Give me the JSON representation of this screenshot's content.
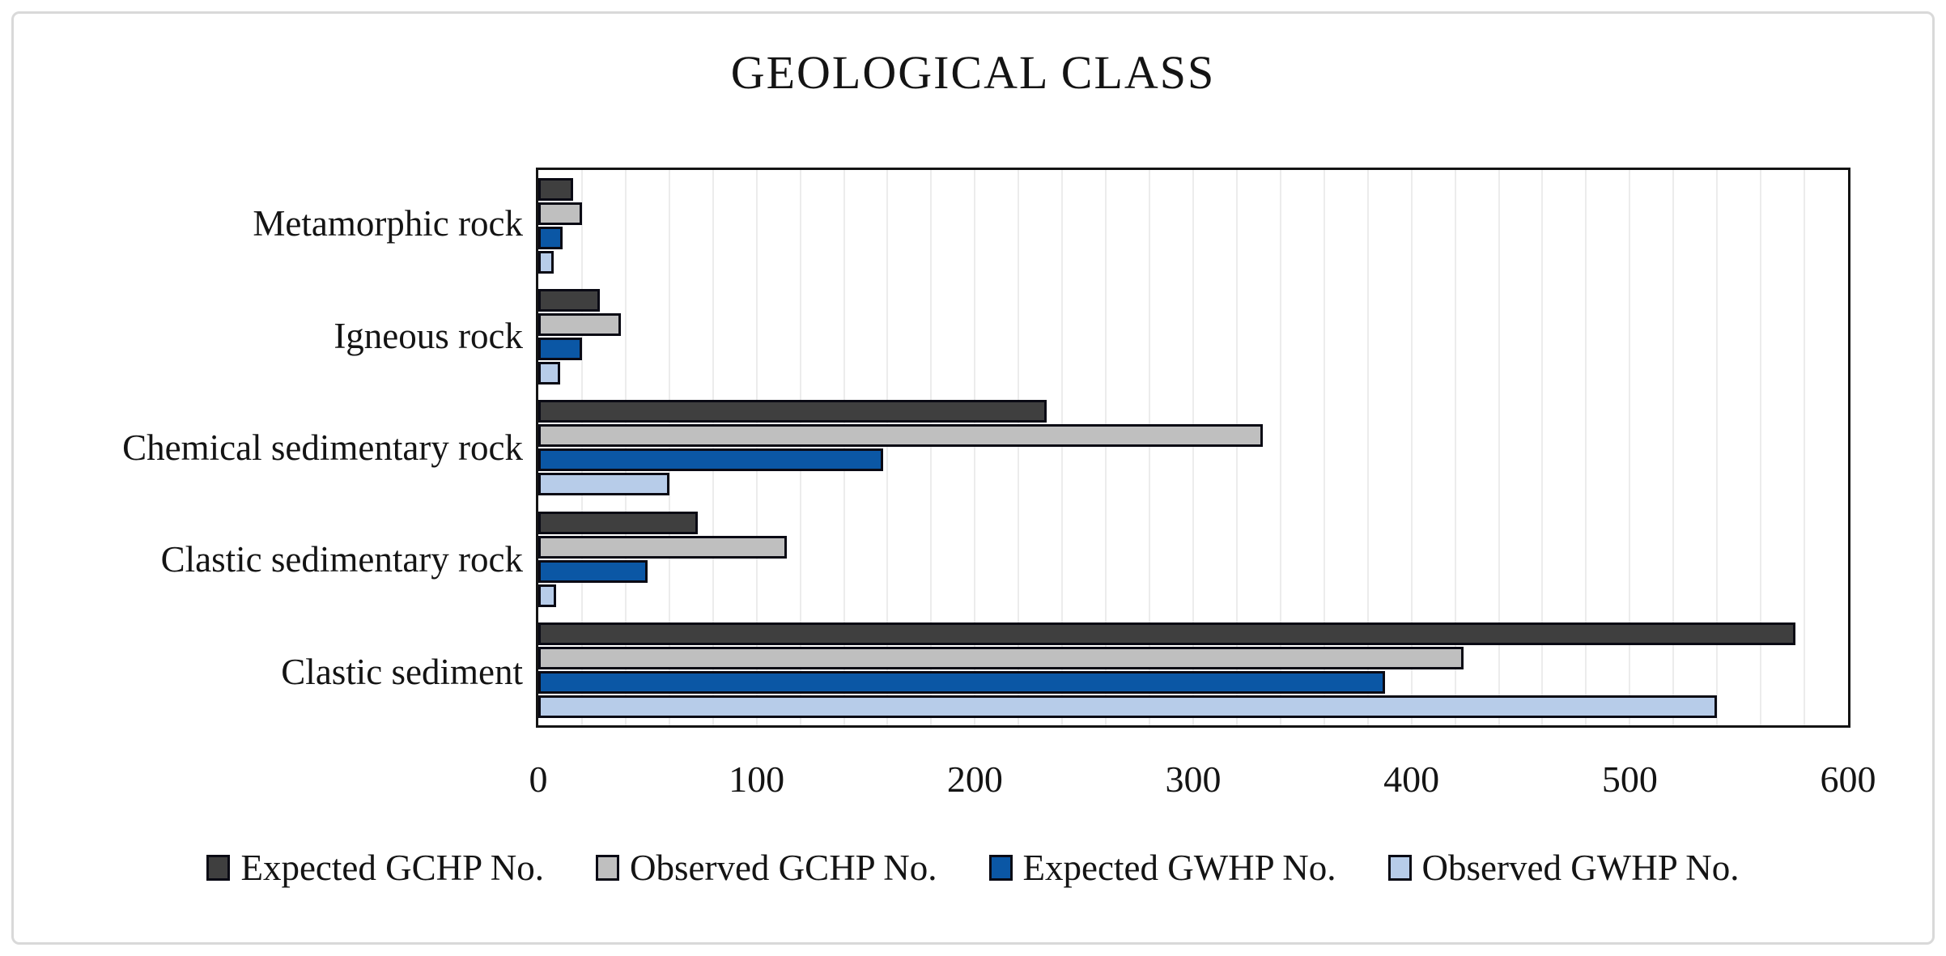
{
  "chart_data": {
    "type": "bar",
    "orientation": "horizontal",
    "title": "GEOLOGICAL CLASS",
    "categories": [
      "Metamorphic rock",
      "Igneous rock",
      "Chemical sedimentary rock",
      "Clastic sedimentary rock",
      "Clastic sediment"
    ],
    "series": [
      {
        "name": "Expected GCHP No.",
        "color": "#3f3f3f",
        "values": [
          16,
          28,
          233,
          73,
          576
        ]
      },
      {
        "name": "Observed GCHP No.",
        "color": "#bfbfbf",
        "values": [
          20,
          38,
          332,
          114,
          424
        ]
      },
      {
        "name": "Expected GWHP No.",
        "color": "#0b57a5",
        "values": [
          11,
          20,
          158,
          50,
          388
        ]
      },
      {
        "name": "Observed GWHP No.",
        "color": "#b7cce9",
        "values": [
          7,
          10,
          60,
          8,
          540
        ]
      }
    ],
    "xlabel": "",
    "ylabel": "",
    "xlim": [
      0,
      600
    ],
    "x_ticks": [
      0,
      100,
      200,
      300,
      400,
      500,
      600
    ],
    "minor_grid_step": 20,
    "grid": true,
    "legend_position": "bottom",
    "bar_outline_color": "#0a0a14"
  }
}
